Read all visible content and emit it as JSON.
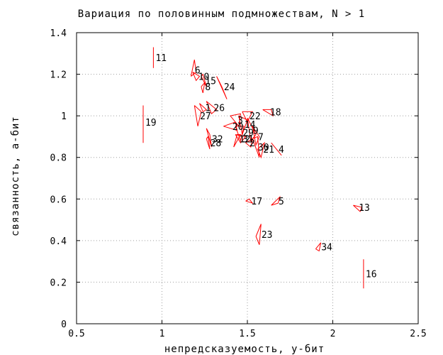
{
  "chart_data": {
    "type": "scatter",
    "title": "Вариация по половинным подмножествам, N > 1",
    "xlabel": "непредсказуемость, у-бит",
    "ylabel": "связанность, а-бит",
    "xlim": [
      0.5,
      2.5
    ],
    "ylim": [
      0,
      1.4
    ],
    "x_ticks": [
      "0.5",
      "1",
      "1.5",
      "2",
      "2.5"
    ],
    "y_ticks": [
      "0",
      "0.2",
      "0.4",
      "0.6",
      "0.8",
      "1",
      "1.2",
      "1.4"
    ],
    "grid": true,
    "series_color": "#ff0000",
    "points": [
      {
        "label": "11",
        "x": 0.95,
        "y": 1.28,
        "shape": [
          [
            0,
            0.05
          ],
          [
            0,
            -0.05
          ]
        ]
      },
      {
        "label": "6",
        "x": 1.18,
        "y": 1.22,
        "shape": [
          [
            -0.01,
            -0.03
          ],
          [
            0.01,
            0.05
          ],
          [
            0.02,
            -0.01
          ],
          [
            -0.01,
            -0.03
          ]
        ]
      },
      {
        "label": "10",
        "x": 1.2,
        "y": 1.19,
        "shape": [
          [
            -0.02,
            0.02
          ],
          [
            0.02,
            0.0
          ],
          [
            0.0,
            -0.02
          ],
          [
            -0.02,
            0.02
          ]
        ]
      },
      {
        "label": "15",
        "x": 1.24,
        "y": 1.17,
        "shape": [
          [
            -0.01,
            0.02
          ],
          [
            0.02,
            -0.03
          ],
          [
            0.0,
            0.03
          ],
          [
            -0.01,
            0.02
          ]
        ]
      },
      {
        "label": "8",
        "x": 1.24,
        "y": 1.14,
        "shape": [
          [
            -0.01,
            0.0
          ],
          [
            0.0,
            -0.03
          ],
          [
            0.01,
            0.02
          ],
          [
            -0.01,
            0.0
          ]
        ]
      },
      {
        "label": "24",
        "x": 1.35,
        "y": 1.14,
        "shape": [
          [
            -0.03,
            0.05
          ],
          [
            0.03,
            -0.06
          ],
          [
            0.0,
            0.0
          ],
          [
            -0.03,
            0.05
          ]
        ]
      },
      {
        "label": "1",
        "x": 1.24,
        "y": 1.04,
        "shape": [
          [
            -0.02,
            0.02
          ],
          [
            0.02,
            -0.01
          ],
          [
            0.0,
            -0.02
          ],
          [
            -0.02,
            0.02
          ]
        ]
      },
      {
        "label": "26",
        "x": 1.29,
        "y": 1.04,
        "shape": [
          [
            -0.03,
            0.03
          ],
          [
            0.03,
            -0.01
          ],
          [
            0.0,
            -0.03
          ],
          [
            -0.03,
            0.03
          ]
        ]
      },
      {
        "label": "27",
        "x": 1.21,
        "y": 1.0,
        "shape": [
          [
            -0.02,
            0.05
          ],
          [
            0.02,
            0.02
          ],
          [
            0.0,
            -0.05
          ],
          [
            -0.02,
            0.05
          ]
        ]
      },
      {
        "label": "19",
        "x": 0.89,
        "y": 0.97,
        "shape": [
          [
            0,
            0.08
          ],
          [
            0,
            -0.1
          ]
        ]
      },
      {
        "label": "3",
        "x": 1.43,
        "y": 0.98,
        "shape": [
          [
            -0.03,
            0.02
          ],
          [
            0.03,
            0.03
          ],
          [
            0.02,
            -0.03
          ],
          [
            -0.03,
            0.02
          ]
        ]
      },
      {
        "label": "22",
        "x": 1.5,
        "y": 1.0,
        "shape": [
          [
            -0.03,
            0.02
          ],
          [
            0.03,
            0.02
          ],
          [
            0.0,
            -0.03
          ],
          [
            -0.03,
            0.02
          ]
        ]
      },
      {
        "label": "18",
        "x": 1.62,
        "y": 1.02,
        "shape": [
          [
            -0.03,
            0.01
          ],
          [
            0.02,
            0.01
          ],
          [
            0.03,
            -0.02
          ],
          [
            -0.03,
            0.01
          ]
        ]
      },
      {
        "label": "20",
        "x": 1.4,
        "y": 0.95,
        "shape": [
          [
            -0.04,
            0.0
          ],
          [
            0.03,
            0.02
          ],
          [
            0.04,
            -0.02
          ],
          [
            -0.04,
            0.0
          ]
        ]
      },
      {
        "label": "14",
        "x": 1.47,
        "y": 0.96,
        "shape": [
          [
            -0.02,
            0.04
          ],
          [
            0.03,
            0.02
          ],
          [
            0.0,
            -0.05
          ],
          [
            -0.02,
            0.04
          ]
        ]
      },
      {
        "label": "9",
        "x": 1.52,
        "y": 0.93,
        "shape": [
          [
            -0.02,
            0.06
          ],
          [
            0.03,
            -0.02
          ],
          [
            0.0,
            -0.05
          ],
          [
            -0.02,
            0.06
          ]
        ]
      },
      {
        "label": "29",
        "x": 1.46,
        "y": 0.92,
        "shape": [
          [
            -0.03,
            0.03
          ],
          [
            0.02,
            0.03
          ],
          [
            0.0,
            -0.04
          ],
          [
            -0.03,
            0.03
          ]
        ]
      },
      {
        "label": "7",
        "x": 1.55,
        "y": 0.9,
        "shape": [
          [
            -0.02,
            0.05
          ],
          [
            0.02,
            0.0
          ],
          [
            0.0,
            -0.04
          ],
          [
            -0.02,
            0.05
          ]
        ]
      },
      {
        "label": "31",
        "x": 1.46,
        "y": 0.89,
        "shape": [
          [
            -0.03,
            0.02
          ],
          [
            0.03,
            0.01
          ],
          [
            0.0,
            -0.02
          ],
          [
            -0.03,
            0.02
          ]
        ]
      },
      {
        "label": "12",
        "x": 1.44,
        "y": 0.89,
        "shape": [
          [
            -0.02,
            -0.04
          ],
          [
            0.02,
            0.02
          ],
          [
            0.0,
            0.02
          ],
          [
            -0.02,
            -0.04
          ]
        ]
      },
      {
        "label": "2",
        "x": 1.5,
        "y": 0.87,
        "shape": [
          [
            -0.01,
            0.0
          ],
          [
            0.03,
            0.02
          ],
          [
            0.02,
            -0.02
          ],
          [
            -0.01,
            0.0
          ]
        ]
      },
      {
        "label": "30",
        "x": 1.55,
        "y": 0.85,
        "shape": [
          [
            -0.02,
            0.04
          ],
          [
            0.01,
            0.05
          ],
          [
            0.02,
            -0.05
          ],
          [
            -0.02,
            0.04
          ]
        ]
      },
      {
        "label": "21",
        "x": 1.58,
        "y": 0.84,
        "shape": [
          [
            -0.02,
            0.0
          ],
          [
            0.02,
            0.03
          ],
          [
            0.0,
            -0.04
          ],
          [
            -0.02,
            0.0
          ]
        ]
      },
      {
        "label": "32",
        "x": 1.28,
        "y": 0.89,
        "shape": [
          [
            -0.02,
            0.05
          ],
          [
            0.01,
            -0.04
          ],
          [
            0.0,
            0.02
          ],
          [
            -0.02,
            0.05
          ]
        ]
      },
      {
        "label": "28",
        "x": 1.27,
        "y": 0.87,
        "shape": [
          [
            -0.01,
            0.02
          ],
          [
            0.01,
            -0.03
          ],
          [
            0.0,
            0.03
          ],
          [
            -0.01,
            0.02
          ]
        ]
      },
      {
        "label": "4",
        "x": 1.67,
        "y": 0.84,
        "shape": [
          [
            -0.03,
            0.03
          ],
          [
            0.03,
            -0.03
          ]
        ]
      },
      {
        "label": "17",
        "x": 1.51,
        "y": 0.59,
        "shape": [
          [
            -0.02,
            0.0
          ],
          [
            0.02,
            -0.01
          ],
          [
            0.0,
            0.01
          ],
          [
            -0.02,
            0.0
          ]
        ]
      },
      {
        "label": "5",
        "x": 1.67,
        "y": 0.59,
        "shape": [
          [
            -0.03,
            -0.02
          ],
          [
            0.02,
            0.02
          ],
          [
            0.01,
            -0.01
          ],
          [
            -0.03,
            -0.02
          ]
        ]
      },
      {
        "label": "13",
        "x": 2.14,
        "y": 0.56,
        "shape": [
          [
            -0.02,
            0.01
          ],
          [
            0.02,
            -0.02
          ],
          [
            0.03,
            0.0
          ],
          [
            -0.02,
            0.01
          ]
        ]
      },
      {
        "label": "23",
        "x": 1.57,
        "y": 0.43,
        "shape": [
          [
            -0.02,
            -0.01
          ],
          [
            0.01,
            0.05
          ],
          [
            0.0,
            -0.05
          ],
          [
            -0.02,
            -0.01
          ]
        ]
      },
      {
        "label": "34",
        "x": 1.92,
        "y": 0.37,
        "shape": [
          [
            -0.02,
            -0.01
          ],
          [
            0.01,
            0.02
          ],
          [
            0.0,
            -0.02
          ],
          [
            -0.02,
            -0.01
          ]
        ]
      },
      {
        "label": "16",
        "x": 2.18,
        "y": 0.24,
        "shape": [
          [
            0,
            0.07
          ],
          [
            0,
            -0.07
          ]
        ]
      }
    ]
  }
}
